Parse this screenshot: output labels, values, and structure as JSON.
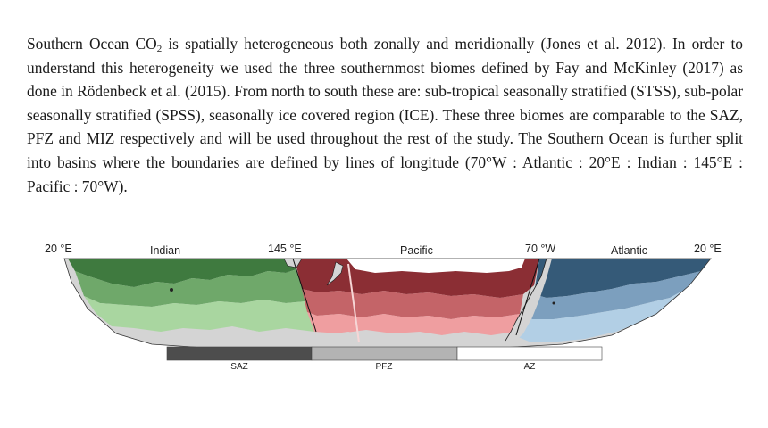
{
  "paragraph": {
    "part1": "Southern Ocean CO",
    "sub": "2",
    "part2": " is spatially heterogeneous both zonally and meridionally (Jones et al. 2012). In order to understand this heterogeneity we used the three southernmost biomes defined by Fay and McKinley (2017) as done in Rödenbeck et al. (2015). From north to south these are: sub-tropical seasonally stratified (STSS), sub-polar seasonally stratified (SPSS), seasonally ice covered region (ICE). These three biomes are comparable to the SAZ, PFZ and MIZ respectively and will be used throughout the rest of the study. The Southern Ocean is further split into basins where the boundaries are defined by lines of longitude (70°W : Atlantic : 20°E : Indian : 145°E : Pacific : 70°W)."
  },
  "map": {
    "lon_labels": [
      "20 °E",
      "145 °E",
      "70 °W",
      "20 °E"
    ],
    "basins": [
      "Indian",
      "Pacific",
      "Atlantic"
    ],
    "colors": {
      "indian": [
        "#3f7a3f",
        "#6fa86a",
        "#a9d6a0"
      ],
      "pacific": [
        "#8b2e34",
        "#c46468",
        "#ef9ea0"
      ],
      "atlantic": [
        "#355a78",
        "#7c9fbe",
        "#b2cfe5"
      ],
      "land": "#d4d4d4"
    }
  },
  "legend": {
    "items": [
      {
        "label": "SAZ",
        "color": "#4d4d4d"
      },
      {
        "label": "PFZ",
        "color": "#b3b3b3"
      },
      {
        "label": "AZ",
        "color": "#ffffff"
      }
    ]
  }
}
